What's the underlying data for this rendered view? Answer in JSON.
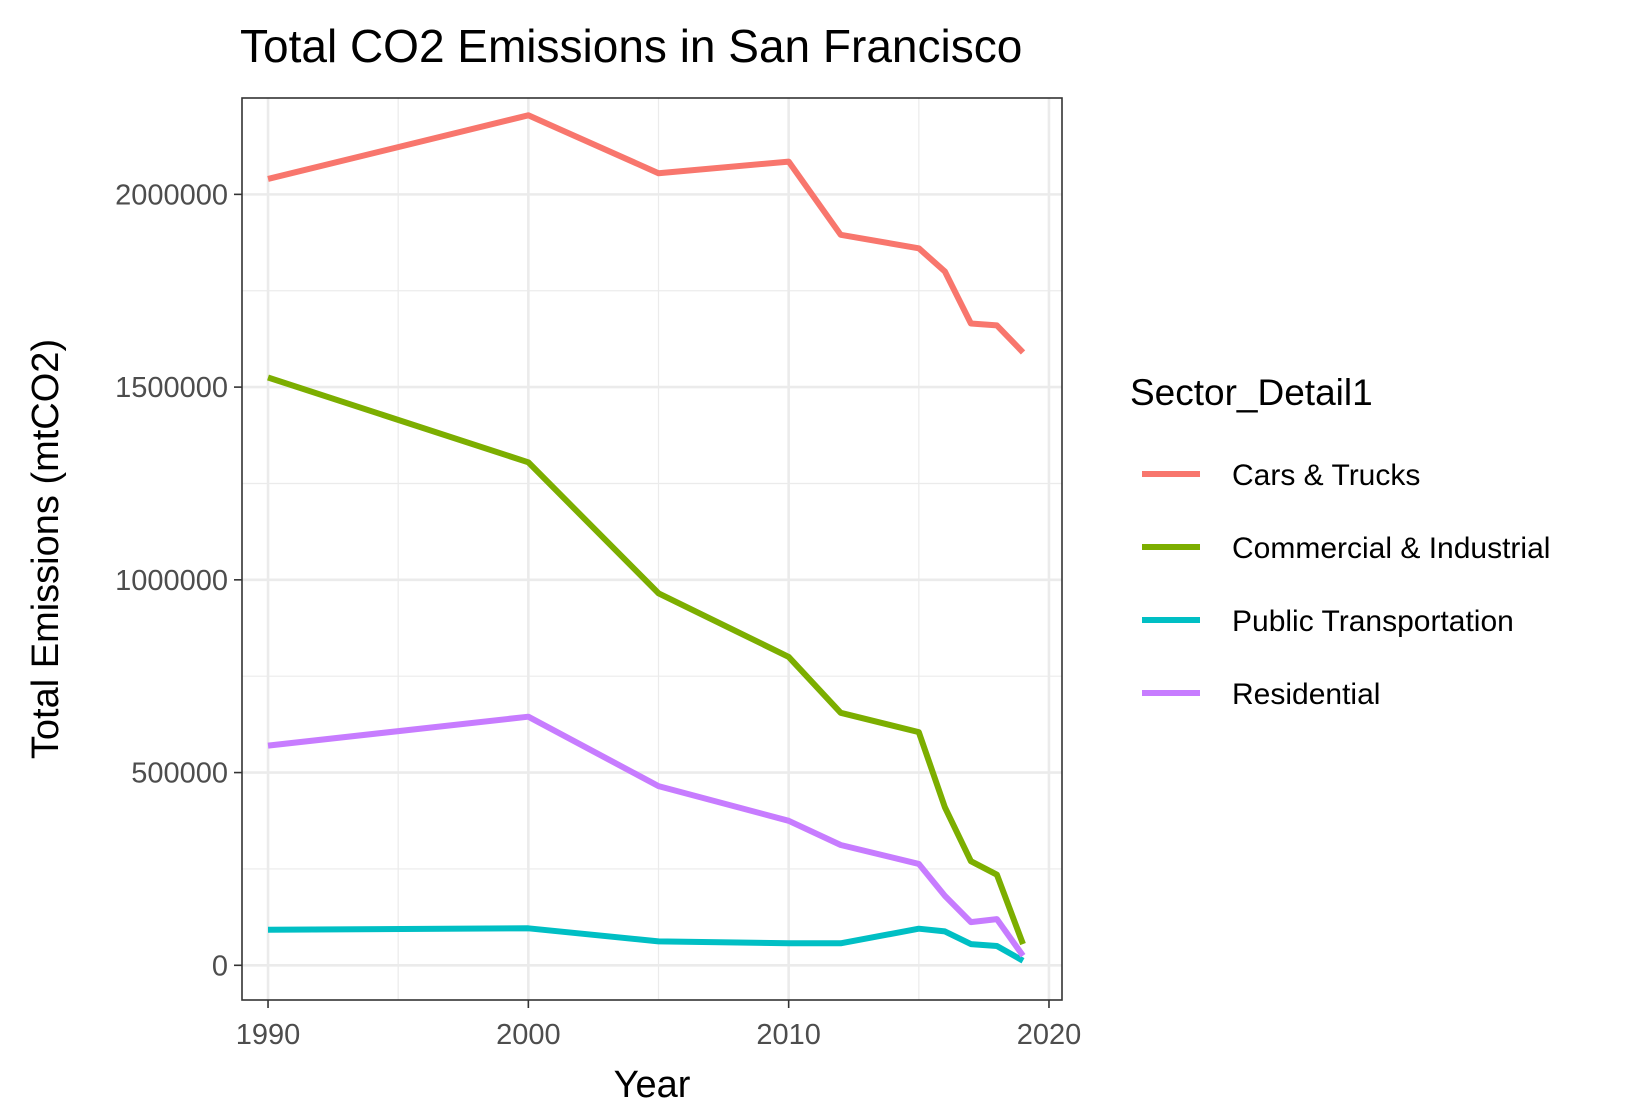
{
  "chart_data": {
    "type": "line",
    "title": "Total CO2 Emissions in San Francisco",
    "xlabel": "Year",
    "ylabel": "Total Emissions (mtCO2)",
    "xlim": [
      1989,
      2020.5
    ],
    "ylim": [
      -90000,
      2250000
    ],
    "x_ticks": [
      1990,
      2000,
      2010,
      2020
    ],
    "x_tick_labels": [
      "1990",
      "2000",
      "2010",
      "2020"
    ],
    "y_ticks": [
      0,
      500000,
      1000000,
      1500000,
      2000000
    ],
    "y_tick_labels": [
      "0",
      "500000",
      "1000000",
      "1500000",
      "2000000"
    ],
    "grid": true,
    "legend": {
      "title": "Sector_Detail1",
      "placement": "right"
    },
    "x": [
      1990,
      2000,
      2005,
      2010,
      2012,
      2015,
      2016,
      2017,
      2018,
      2019
    ],
    "series": [
      {
        "name": "Cars & Trucks",
        "color": "#F8766D",
        "values": [
          2040000,
          2205000,
          2055000,
          2085000,
          1895000,
          1860000,
          1800000,
          1665000,
          1660000,
          1590000
        ]
      },
      {
        "name": "Commercial & Industrial",
        "color": "#7CAE00",
        "values": [
          1525000,
          1305000,
          965000,
          800000,
          655000,
          605000,
          410000,
          270000,
          235000,
          55000
        ]
      },
      {
        "name": "Public Transportation",
        "color": "#00BFC4",
        "values": [
          92000,
          96000,
          62000,
          57000,
          57000,
          95000,
          88000,
          55000,
          50000,
          12000
        ]
      },
      {
        "name": "Residential",
        "color": "#C77CFF",
        "values": [
          570000,
          645000,
          465000,
          375000,
          312000,
          263000,
          180000,
          112000,
          120000,
          25000
        ]
      }
    ]
  }
}
